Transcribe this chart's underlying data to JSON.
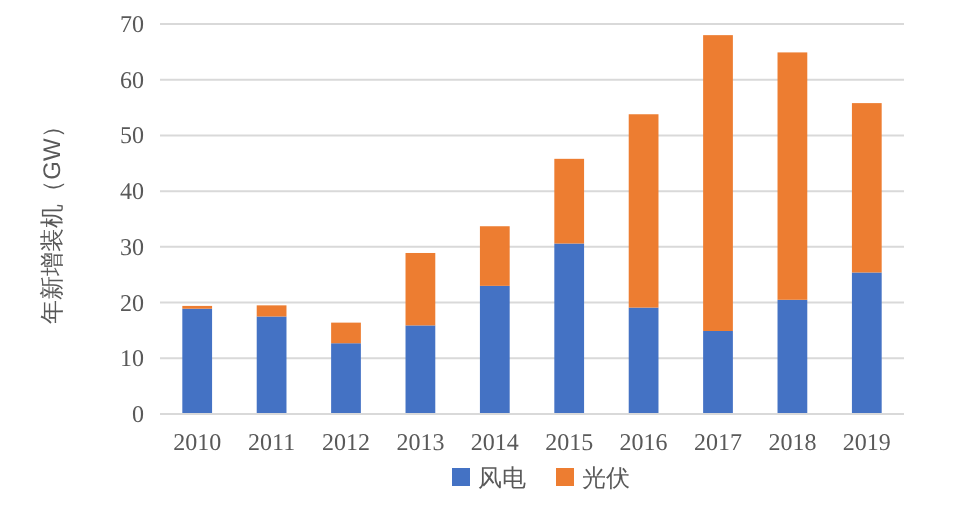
{
  "chart_data": {
    "type": "bar",
    "stacked": true,
    "ylabel": "年新增装机（GW）",
    "categories": [
      "2010",
      "2011",
      "2012",
      "2013",
      "2014",
      "2015",
      "2016",
      "2017",
      "2018",
      "2019"
    ],
    "series": [
      {
        "name": "风电",
        "color": "#4472c4",
        "values": [
          18.9,
          17.5,
          12.7,
          15.9,
          23.0,
          30.6,
          19.1,
          14.9,
          20.5,
          25.4
        ]
      },
      {
        "name": "光伏",
        "color": "#ed7d31",
        "values": [
          0.5,
          2.0,
          3.7,
          13.0,
          10.7,
          15.2,
          34.7,
          53.1,
          44.4,
          30.4
        ]
      }
    ],
    "ylim": [
      0,
      70
    ],
    "yticks": [
      0,
      10,
      20,
      30,
      40,
      50,
      60,
      70
    ],
    "grid": "y",
    "legend": "bottom"
  }
}
